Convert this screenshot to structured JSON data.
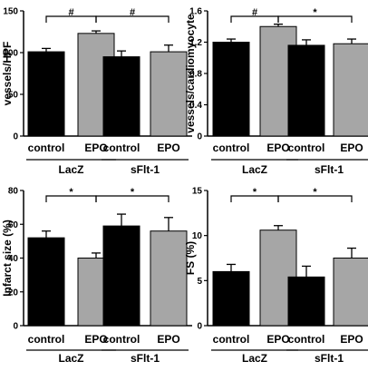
{
  "colors": {
    "black_bar": "#000000",
    "gray_bar": "#a6a6a6",
    "axis": "#000000"
  },
  "chart_data": [
    {
      "type": "bar",
      "ylabel": "vessels/HPF",
      "ylim": [
        0,
        150
      ],
      "yticks": [
        0,
        50,
        100,
        150
      ],
      "tick_labels": [
        "0",
        "50",
        "100",
        "150"
      ],
      "categories": [
        "control",
        "EPO",
        "control",
        "EPO"
      ],
      "groups": [
        "LacZ",
        "sFlt-1"
      ],
      "values": [
        101,
        123,
        95,
        101
      ],
      "errors": [
        4,
        3,
        7,
        8
      ],
      "fills": [
        "black",
        "gray",
        "black",
        "gray"
      ],
      "significance": [
        {
          "from": 0,
          "to": 1,
          "symbol": "#"
        },
        {
          "from": 1,
          "to": 3,
          "symbol": "#"
        }
      ]
    },
    {
      "type": "bar",
      "ylabel": "vessels/cardiomyocyte",
      "ylim": [
        0,
        1.6
      ],
      "yticks": [
        0,
        0.4,
        0.8,
        1.2,
        1.6
      ],
      "tick_labels": [
        "0",
        "0.4",
        "0.8",
        "1.2",
        "1.6"
      ],
      "categories": [
        "control",
        "EPO",
        "control",
        "EPO"
      ],
      "groups": [
        "LacZ",
        "sFlt-1"
      ],
      "values": [
        1.2,
        1.4,
        1.16,
        1.18
      ],
      "errors": [
        0.04,
        0.03,
        0.07,
        0.06
      ],
      "fills": [
        "black",
        "gray",
        "black",
        "gray"
      ],
      "significance": [
        {
          "from": 0,
          "to": 1,
          "symbol": "#"
        },
        {
          "from": 1,
          "to": 3,
          "symbol": "*"
        }
      ]
    },
    {
      "type": "bar",
      "ylabel": "Infarct size (%)",
      "ylim": [
        0,
        80
      ],
      "yticks": [
        0,
        20,
        40,
        60,
        80
      ],
      "tick_labels": [
        "0",
        "20",
        "40",
        "60",
        "80"
      ],
      "categories": [
        "control",
        "EPO",
        "control",
        "EPO"
      ],
      "groups": [
        "LacZ",
        "sFlt-1"
      ],
      "values": [
        52,
        40,
        59,
        56
      ],
      "errors": [
        4,
        3,
        7,
        8
      ],
      "fills": [
        "black",
        "gray",
        "black",
        "gray"
      ],
      "significance": [
        {
          "from": 0,
          "to": 1,
          "symbol": "*"
        },
        {
          "from": 1,
          "to": 3,
          "symbol": "*"
        }
      ]
    },
    {
      "type": "bar",
      "ylabel": "FS (%)",
      "ylim": [
        0,
        15
      ],
      "yticks": [
        0,
        5,
        10,
        15
      ],
      "tick_labels": [
        "0",
        "5",
        "10",
        "15"
      ],
      "categories": [
        "control",
        "EPO",
        "control",
        "EPO"
      ],
      "groups": [
        "LacZ",
        "sFlt-1"
      ],
      "values": [
        6,
        10.6,
        5.4,
        7.5
      ],
      "errors": [
        0.8,
        0.5,
        1.2,
        1.1
      ],
      "fills": [
        "black",
        "gray",
        "black",
        "gray"
      ],
      "significance": [
        {
          "from": 0,
          "to": 1,
          "symbol": "*"
        },
        {
          "from": 1,
          "to": 3,
          "symbol": "*"
        }
      ]
    }
  ]
}
